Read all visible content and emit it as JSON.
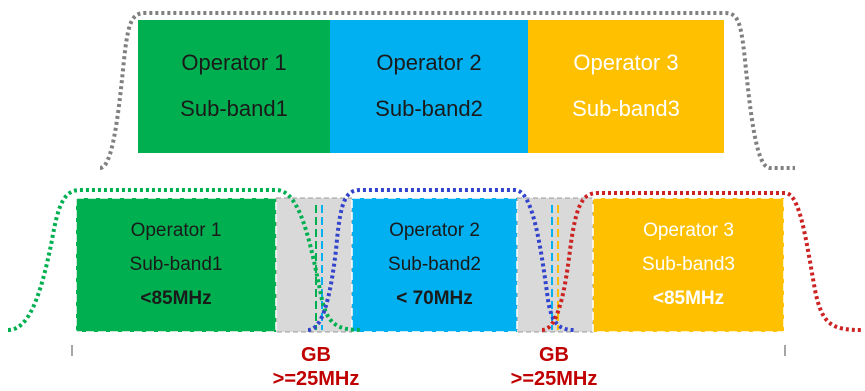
{
  "top": {
    "bands": [
      {
        "operator": "Operator 1",
        "subband": "Sub-band1",
        "color": "#00b050",
        "text_color": "#1a1a1a"
      },
      {
        "operator": "Operator 2",
        "subband": "Sub-band2",
        "color": "#00b0f0",
        "text_color": "#1a1a1a"
      },
      {
        "operator": "Operator 3",
        "subband": "Sub-band3",
        "color": "#ffc000",
        "text_color": "#ffffff"
      }
    ],
    "mask_color": "#808080"
  },
  "bottom": {
    "bands": [
      {
        "operator": "Operator 1",
        "subband": "Sub-band1",
        "bandwidth": "<85MHz",
        "color": "#00b050",
        "text_color": "#1a1a1a",
        "mask_color": "#00b050"
      },
      {
        "operator": "Operator 2",
        "subband": "Sub-band2",
        "bandwidth": "< 70MHz",
        "color": "#00b0f0",
        "text_color": "#1a1a1a",
        "mask_color": "#3344cc"
      },
      {
        "operator": "Operator 3",
        "subband": "Sub-band3",
        "bandwidth": "<85MHz",
        "color": "#ffc000",
        "text_color": "#ffffff",
        "mask_color": "#cc2222"
      }
    ],
    "guard_color": "#d9d9d9",
    "guard_bands": [
      {
        "label": "GB",
        "size": ">=25MHz"
      },
      {
        "label": "GB",
        "size": ">=25MHz"
      }
    ]
  }
}
